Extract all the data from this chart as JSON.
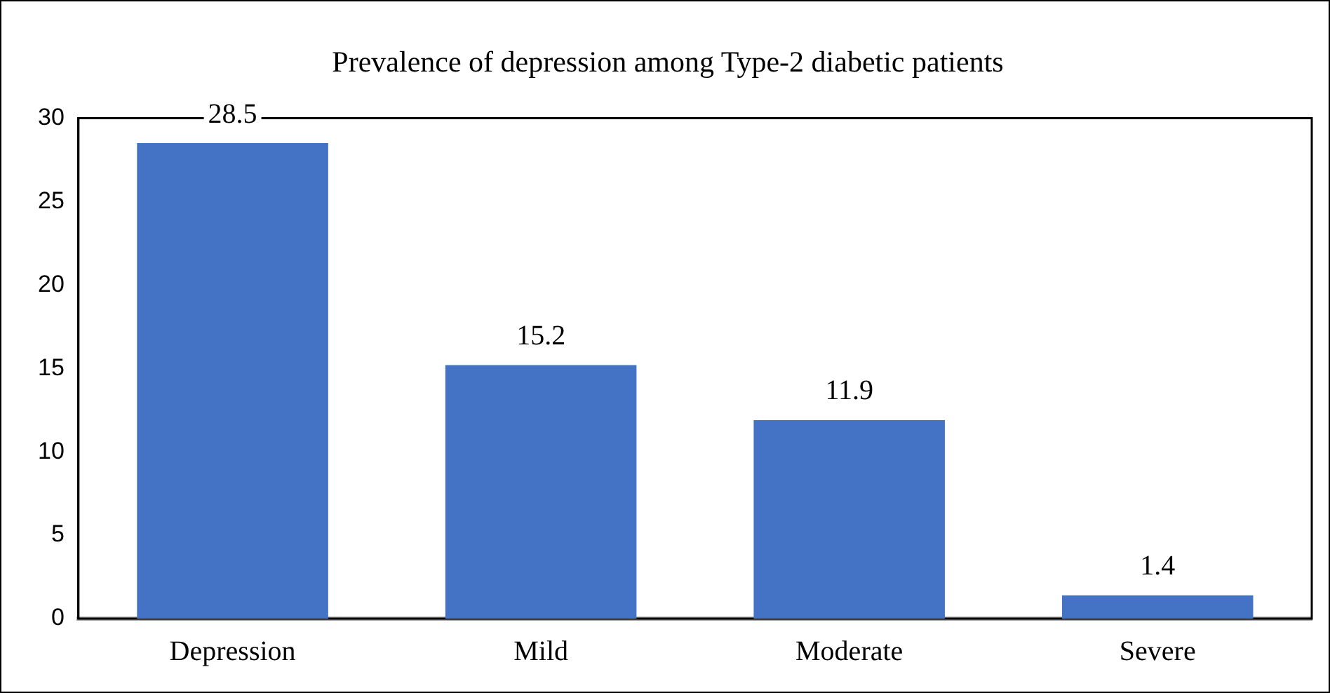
{
  "chart_data": {
    "type": "bar",
    "title": "Prevalence of depression among Type-2 diabetic patients",
    "categories": [
      "Depression",
      "Mild",
      "Moderate",
      "Severe"
    ],
    "values": [
      28.5,
      15.2,
      11.9,
      1.4
    ],
    "color": "#4472c4",
    "ylim": [
      0,
      30
    ],
    "yticks": [
      0,
      5,
      10,
      15,
      20,
      25,
      30
    ],
    "grid": false,
    "legend": false,
    "data_labels": true
  }
}
